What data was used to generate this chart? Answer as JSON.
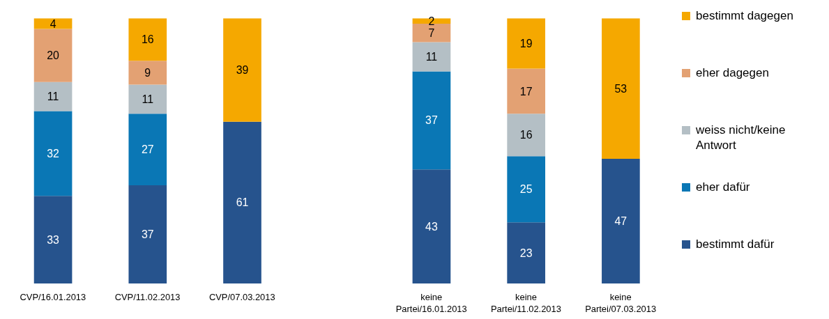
{
  "chart_data": {
    "type": "bar",
    "stacked": true,
    "data_labels": true,
    "legend": "right",
    "tick_labels": "x",
    "ylim": [
      0,
      100
    ],
    "categories": [
      "CVP/16.01.2013",
      "CVP/11.02.2013",
      "CVP/07.03.2013",
      null,
      "keine Partei/16.01.2013",
      "keine Partei/11.02.2013",
      "keine Partei/07.03.2013"
    ],
    "series": [
      {
        "name": "bestimmt dafür",
        "color": "#26538d",
        "values": [
          33,
          37,
          61,
          null,
          43,
          23,
          47
        ]
      },
      {
        "name": "eher dafür",
        "color": "#0a77b5",
        "values": [
          32,
          27,
          null,
          null,
          37,
          25,
          null
        ]
      },
      {
        "name": "weiss nicht/keine Antwort",
        "color": "#b4bfc5",
        "values": [
          11,
          11,
          null,
          null,
          11,
          16,
          null
        ]
      },
      {
        "name": "eher dagegen",
        "color": "#e3a173",
        "values": [
          20,
          9,
          null,
          null,
          7,
          17,
          null
        ]
      },
      {
        "name": "bestimmt dagegen",
        "color": "#f5a800",
        "values": [
          4,
          16,
          39,
          null,
          2,
          19,
          53
        ]
      }
    ]
  }
}
